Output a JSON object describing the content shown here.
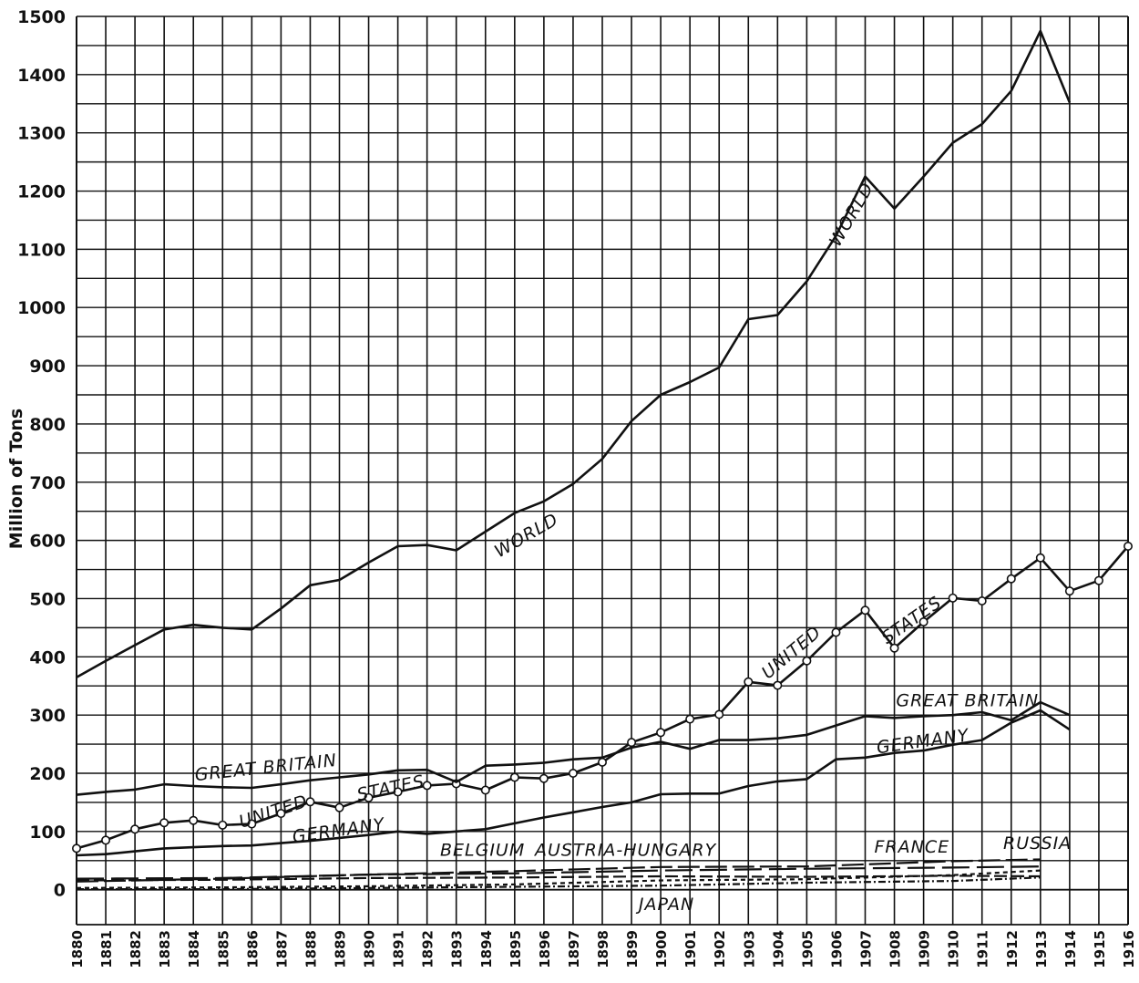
{
  "chart_data": {
    "type": "line",
    "xlabel": "",
    "ylabel": "Million of Tons",
    "xlim": [
      1880,
      1916
    ],
    "ylim": [
      -60,
      1500
    ],
    "y_ticks": [
      0,
      100,
      200,
      300,
      400,
      500,
      600,
      700,
      800,
      900,
      1000,
      1100,
      1200,
      1300,
      1400,
      1500
    ],
    "x_ticks": [
      "1880",
      "1881",
      "1882",
      "1883",
      "1884",
      "1885",
      "1886",
      "1887",
      "1888",
      "1889",
      "1890",
      "1891",
      "1892",
      "1893",
      "1894",
      "1895",
      "1896",
      "1897",
      "1898",
      "1899",
      "1900",
      "1901",
      "1902",
      "1903",
      "1904",
      "1905",
      "1906",
      "1907",
      "1908",
      "1909",
      "1910",
      "1911",
      "1912",
      "1913",
      "1914",
      "1915",
      "1916"
    ],
    "grid": true,
    "colors": {
      "line": "#111111",
      "grid": "#111111",
      "background": "#ffffff"
    },
    "series": [
      {
        "name": "WORLD",
        "label_instances": [
          {
            "text": "WORLD",
            "x": 1895.5,
            "y": 600,
            "angle": -30
          },
          {
            "text": "WORLD",
            "x": 1906.7,
            "y": 1155,
            "angle": -60
          }
        ],
        "x": [
          1880,
          1881,
          1882,
          1883,
          1884,
          1885,
          1886,
          1887,
          1888,
          1889,
          1890,
          1891,
          1892,
          1893,
          1894,
          1895,
          1896,
          1897,
          1898,
          1899,
          1900,
          1901,
          1902,
          1903,
          1904,
          1905,
          1906,
          1907,
          1908,
          1909,
          1910,
          1911,
          1912,
          1913,
          1914
        ],
        "values": [
          365,
          393,
          420,
          447,
          455,
          450,
          447,
          483,
          523,
          532,
          562,
          590,
          592,
          583,
          615,
          647,
          667,
          697,
          740,
          805,
          850,
          872,
          897,
          980,
          987,
          1045,
          1123,
          1225,
          1170,
          1225,
          1283,
          1315,
          1372,
          1475,
          1352
        ]
      },
      {
        "name": "UNITED STATES",
        "markers": true,
        "label_instances": [
          {
            "text": "UNITED",
            "x": 1886.8,
            "y": 125,
            "angle": -18
          },
          {
            "text": "STATES",
            "x": 1890.8,
            "y": 165,
            "angle": -12
          },
          {
            "text": "UNITED",
            "x": 1904.6,
            "y": 400,
            "angle": -40
          },
          {
            "text": "STATES",
            "x": 1908.7,
            "y": 455,
            "angle": -35
          }
        ],
        "x": [
          1880,
          1881,
          1882,
          1883,
          1884,
          1885,
          1886,
          1887,
          1888,
          1889,
          1890,
          1891,
          1892,
          1893,
          1894,
          1895,
          1896,
          1897,
          1898,
          1899,
          1900,
          1901,
          1902,
          1903,
          1904,
          1905,
          1906,
          1907,
          1908,
          1909,
          1910,
          1911,
          1912,
          1913,
          1914,
          1915,
          1916
        ],
        "values": [
          71,
          85,
          104,
          115,
          119,
          111,
          113,
          131,
          151,
          141,
          158,
          168,
          179,
          182,
          171,
          193,
          191,
          200,
          219,
          253,
          270,
          293,
          301,
          357,
          351,
          393,
          442,
          480,
          415,
          460,
          501,
          496,
          534,
          570,
          513,
          531,
          590
        ]
      },
      {
        "name": "GREAT BRITAIN",
        "label_instances": [
          {
            "text": "GREAT BRITAIN",
            "x": 1886.5,
            "y": 200,
            "angle": -6
          },
          {
            "text": "GREAT BRITAIN",
            "x": 1910.5,
            "y": 315,
            "angle": 0
          }
        ],
        "x": [
          1880,
          1881,
          1882,
          1883,
          1884,
          1885,
          1886,
          1887,
          1888,
          1889,
          1890,
          1891,
          1892,
          1893,
          1894,
          1895,
          1896,
          1897,
          1898,
          1899,
          1900,
          1901,
          1902,
          1903,
          1904,
          1905,
          1906,
          1907,
          1908,
          1909,
          1910,
          1911,
          1912,
          1913,
          1914
        ],
        "values": [
          163,
          168,
          172,
          181,
          178,
          176,
          175,
          181,
          188,
          193,
          198,
          205,
          206,
          185,
          213,
          215,
          218,
          224,
          227,
          244,
          254,
          242,
          257,
          257,
          260,
          266,
          282,
          298,
          295,
          298,
          300,
          305,
          291,
          322,
          300
        ]
      },
      {
        "name": "GERMANY",
        "label_instances": [
          {
            "text": "GERMANY",
            "x": 1889.0,
            "y": 92,
            "angle": -8
          },
          {
            "text": "GERMANY",
            "x": 1909.0,
            "y": 245,
            "angle": -8
          }
        ],
        "x": [
          1880,
          1881,
          1882,
          1883,
          1884,
          1885,
          1886,
          1887,
          1888,
          1889,
          1890,
          1891,
          1892,
          1893,
          1894,
          1895,
          1896,
          1897,
          1898,
          1899,
          1900,
          1901,
          1902,
          1903,
          1904,
          1905,
          1906,
          1907,
          1908,
          1909,
          1910,
          1911,
          1912,
          1913,
          1914
        ],
        "values": [
          59,
          61,
          66,
          71,
          73,
          75,
          76,
          80,
          84,
          89,
          94,
          100,
          96,
          100,
          104,
          114,
          124,
          133,
          142,
          150,
          164,
          165,
          165,
          178,
          186,
          190,
          224,
          227,
          235,
          239,
          249,
          257,
          287,
          308,
          275
        ]
      },
      {
        "name": "BELGIUM",
        "dash": "14 5",
        "label_instances": [
          {
            "text": "BELGIUM",
            "x": 1893.9,
            "y": 58,
            "angle": 0
          }
        ],
        "x": [
          1880,
          1885,
          1890,
          1895,
          1900,
          1905,
          1910,
          1913
        ],
        "values": [
          16,
          17,
          20,
          21,
          23,
          22,
          24,
          23
        ]
      },
      {
        "name": "AUSTRIA-HUNGARY",
        "dash": "24 6",
        "label_instances": [
          {
            "text": "AUSTRIA-HUNGARY",
            "x": 1898.8,
            "y": 58,
            "angle": 0
          }
        ],
        "x": [
          1880,
          1885,
          1890,
          1895,
          1900,
          1905,
          1910,
          1913
        ],
        "values": [
          14,
          19,
          26,
          32,
          39,
          40,
          49,
          52
        ]
      },
      {
        "name": "FRANCE",
        "dash": "30 8",
        "label_instances": [
          {
            "text": "FRANCE",
            "x": 1908.6,
            "y": 64,
            "angle": 0
          }
        ],
        "x": [
          1880,
          1885,
          1890,
          1895,
          1900,
          1905,
          1910,
          1913
        ],
        "values": [
          19,
          20,
          26,
          28,
          33,
          36,
          38,
          40
        ]
      },
      {
        "name": "RUSSIA",
        "dash": "5 4",
        "label_instances": [
          {
            "text": "RUSSIA",
            "x": 1912.9,
            "y": 70,
            "angle": 0
          }
        ],
        "x": [
          1880,
          1885,
          1890,
          1895,
          1900,
          1905,
          1910,
          1913
        ],
        "values": [
          3,
          4,
          6,
          9,
          16,
          18,
          25,
          33
        ]
      },
      {
        "name": "JAPAN",
        "dash": "8 3 2 3",
        "label_instances": [
          {
            "text": "JAPAN",
            "x": 1900.2,
            "y": -35,
            "angle": 0
          }
        ],
        "x": [
          1880,
          1885,
          1890,
          1895,
          1900,
          1905,
          1910,
          1913
        ],
        "values": [
          1,
          1,
          3,
          5,
          7,
          12,
          15,
          21
        ]
      }
    ]
  }
}
